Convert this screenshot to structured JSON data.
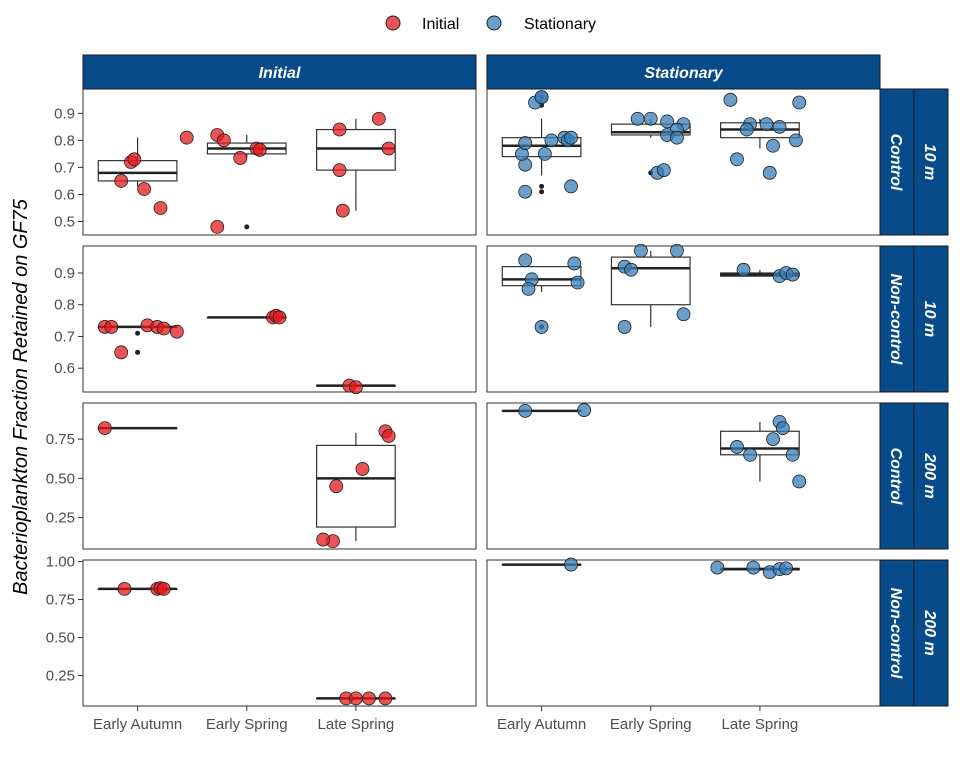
{
  "chart_data": {
    "type": "box-jitter",
    "ylabel": "Bacterioplankton Fraction Retained on GF75",
    "xlabel": "",
    "categories": [
      "Early Autumn",
      "Early Spring",
      "Late Spring"
    ],
    "legend": {
      "placement": "top",
      "entries": [
        {
          "name": "Initial",
          "color": "#E41A1C"
        },
        {
          "name": "Stationary",
          "color": "#377EB8"
        }
      ]
    },
    "strip_color": "#084B8A",
    "columns": [
      "Initial",
      "Stationary"
    ],
    "rows": [
      {
        "treatment": "Control",
        "depth": "10 m",
        "ylim": [
          0.45,
          0.99
        ],
        "yticks": [
          0.6,
          0.7,
          0.8,
          0.9,
          0.5
        ],
        "ytick_labels": [
          "0.6",
          "0.7",
          "0.8",
          "0.9",
          "0.5"
        ]
      },
      {
        "treatment": "Non-control",
        "depth": "10 m",
        "ylim": [
          0.525,
          0.985
        ],
        "yticks": [
          0.6,
          0.7,
          0.8,
          0.9
        ],
        "ytick_labels": [
          "0.6",
          "0.7",
          "0.8",
          "0.9"
        ]
      },
      {
        "treatment": "Control",
        "depth": "200 m",
        "ylim": [
          0.05,
          0.98
        ],
        "yticks": [
          0.25,
          0.5,
          0.75
        ],
        "ytick_labels": [
          "0.25",
          "0.50",
          "0.75"
        ]
      },
      {
        "treatment": "Non-control",
        "depth": "200 m",
        "ylim": [
          0.05,
          1.01
        ],
        "yticks": [
          0.25,
          0.5,
          0.75,
          1.0
        ],
        "ytick_labels": [
          "0.25",
          "0.50",
          "0.75",
          "1.00"
        ]
      }
    ],
    "panels": [
      {
        "row": 0,
        "col": 0,
        "groups": [
          {
            "cat": 0,
            "box": [
              0.63,
              0.65,
              0.68,
              0.725,
              0.81
            ],
            "outliers": [],
            "points": [
              [
                -0.05,
                0.65
              ],
              [
                -0.02,
                0.72
              ],
              [
                -0.01,
                0.73
              ],
              [
                0.02,
                0.62
              ],
              [
                0.07,
                0.55
              ],
              [
                0.15,
                0.81
              ]
            ]
          },
          {
            "cat": 1,
            "box": [
              0.735,
              0.75,
              0.77,
              0.79,
              0.82
            ],
            "outliers": [
              0.48
            ],
            "points": [
              [
                -0.09,
                0.48
              ],
              [
                -0.09,
                0.82
              ],
              [
                -0.07,
                0.8
              ],
              [
                -0.02,
                0.735
              ],
              [
                0.03,
                0.77
              ],
              [
                0.04,
                0.765
              ]
            ]
          },
          {
            "cat": 2,
            "box": [
              0.54,
              0.69,
              0.77,
              0.84,
              0.88
            ],
            "outliers": [],
            "points": [
              [
                -0.04,
                0.54
              ],
              [
                -0.05,
                0.69
              ],
              [
                -0.05,
                0.84
              ],
              [
                0.07,
                0.88
              ],
              [
                0.1,
                0.77
              ]
            ]
          }
        ]
      },
      {
        "row": 0,
        "col": 1,
        "groups": [
          {
            "cat": 0,
            "box": [
              0.67,
              0.74,
              0.78,
              0.81,
              0.88
            ],
            "outliers": [
              0.96,
              0.93,
              0.61,
              0.63
            ],
            "points": [
              [
                -0.05,
                0.61
              ],
              [
                0.09,
                0.63
              ],
              [
                -0.05,
                0.71
              ],
              [
                -0.06,
                0.75
              ],
              [
                0.01,
                0.75
              ],
              [
                -0.05,
                0.79
              ],
              [
                0.03,
                0.8
              ],
              [
                0.07,
                0.81
              ],
              [
                0.08,
                0.8
              ],
              [
                0.09,
                0.81
              ],
              [
                -0.02,
                0.94
              ],
              [
                0.0,
                0.96
              ],
              [
                0.0,
                0.96
              ]
            ]
          },
          {
            "cat": 1,
            "box": [
              0.81,
              0.82,
              0.83,
              0.86,
              0.88
            ],
            "outliers": [
              0.68
            ],
            "points": [
              [
                -0.04,
                0.88
              ],
              [
                0.0,
                0.88
              ],
              [
                0.05,
                0.87
              ],
              [
                0.1,
                0.86
              ],
              [
                0.08,
                0.84
              ],
              [
                0.05,
                0.82
              ],
              [
                0.08,
                0.81
              ],
              [
                0.02,
                0.68
              ],
              [
                0.04,
                0.69
              ]
            ]
          },
          {
            "cat": 2,
            "box": [
              0.77,
              0.81,
              0.84,
              0.865,
              0.88
            ],
            "outliers": [],
            "points": [
              [
                -0.09,
                0.95
              ],
              [
                0.12,
                0.94
              ],
              [
                -0.03,
                0.86
              ],
              [
                0.02,
                0.86
              ],
              [
                -0.04,
                0.84
              ],
              [
                0.06,
                0.85
              ],
              [
                0.04,
                0.78
              ],
              [
                0.11,
                0.8
              ],
              [
                -0.07,
                0.73
              ],
              [
                0.03,
                0.68
              ]
            ]
          }
        ]
      },
      {
        "row": 1,
        "col": 0,
        "groups": [
          {
            "cat": 0,
            "box": [
              0.73,
              0.73,
              0.73,
              0.73,
              0.73
            ],
            "outliers": [
              0.71,
              0.65
            ],
            "points": [
              [
                -0.1,
                0.73
              ],
              [
                -0.08,
                0.73
              ],
              [
                0.03,
                0.735
              ],
              [
                0.06,
                0.73
              ],
              [
                0.08,
                0.725
              ],
              [
                0.12,
                0.715
              ],
              [
                -0.05,
                0.65
              ]
            ]
          },
          {
            "cat": 1,
            "box": [
              0.76,
              0.76,
              0.76,
              0.76,
              0.76
            ],
            "outliers": [],
            "points": [
              [
                0.08,
                0.76
              ],
              [
                0.09,
                0.765
              ],
              [
                0.1,
                0.76
              ]
            ]
          },
          {
            "cat": 2,
            "box": [
              0.545,
              0.545,
              0.545,
              0.545,
              0.545
            ],
            "outliers": [],
            "points": [
              [
                -0.02,
                0.545
              ],
              [
                0.0,
                0.54
              ]
            ]
          }
        ]
      },
      {
        "row": 1,
        "col": 1,
        "groups": [
          {
            "cat": 0,
            "box": [
              0.84,
              0.86,
              0.88,
              0.92,
              0.92
            ],
            "outliers": [
              0.73
            ],
            "points": [
              [
                -0.05,
                0.94
              ],
              [
                -0.03,
                0.88
              ],
              [
                0.1,
                0.93
              ],
              [
                0.11,
                0.87
              ],
              [
                -0.04,
                0.85
              ],
              [
                0.0,
                0.73
              ]
            ]
          },
          {
            "cat": 1,
            "box": [
              0.73,
              0.8,
              0.915,
              0.95,
              0.97
            ],
            "outliers": [],
            "points": [
              [
                -0.08,
                0.92
              ],
              [
                -0.06,
                0.91
              ],
              [
                -0.03,
                0.97
              ],
              [
                0.08,
                0.97
              ],
              [
                0.1,
                0.77
              ],
              [
                -0.08,
                0.73
              ]
            ]
          },
          {
            "cat": 2,
            "box": [
              0.89,
              0.89,
              0.895,
              0.9,
              0.91
            ],
            "outliers": [],
            "points": [
              [
                -0.05,
                0.91
              ],
              [
                0.06,
                0.89
              ],
              [
                0.08,
                0.9
              ],
              [
                0.1,
                0.895
              ]
            ]
          }
        ]
      },
      {
        "row": 2,
        "col": 0,
        "groups": [
          {
            "cat": 0,
            "box": [
              0.82,
              0.82,
              0.82,
              0.82,
              0.82
            ],
            "outliers": [],
            "points": [
              [
                -0.1,
                0.82
              ]
            ]
          },
          {
            "cat": 2,
            "box": [
              0.1,
              0.19,
              0.5,
              0.71,
              0.79
            ],
            "outliers": [],
            "points": [
              [
                -0.07,
                0.1
              ],
              [
                -0.1,
                0.11
              ],
              [
                -0.06,
                0.45
              ],
              [
                0.02,
                0.56
              ],
              [
                0.09,
                0.8
              ],
              [
                0.1,
                0.77
              ]
            ]
          }
        ]
      },
      {
        "row": 2,
        "col": 1,
        "groups": [
          {
            "cat": 0,
            "box": [
              0.93,
              0.93,
              0.93,
              0.93,
              0.93
            ],
            "outliers": [],
            "points": [
              [
                -0.05,
                0.93
              ],
              [
                0.13,
                0.935
              ]
            ]
          },
          {
            "cat": 2,
            "box": [
              0.48,
              0.65,
              0.69,
              0.8,
              0.86
            ],
            "outliers": [],
            "points": [
              [
                0.06,
                0.86
              ],
              [
                0.07,
                0.82
              ],
              [
                0.04,
                0.75
              ],
              [
                -0.07,
                0.7
              ],
              [
                -0.03,
                0.65
              ],
              [
                0.1,
                0.65
              ],
              [
                0.12,
                0.48
              ]
            ]
          }
        ]
      },
      {
        "row": 3,
        "col": 0,
        "groups": [
          {
            "cat": 0,
            "box": [
              0.82,
              0.82,
              0.82,
              0.82,
              0.82
            ],
            "outliers": [],
            "points": [
              [
                -0.04,
                0.82
              ],
              [
                0.06,
                0.82
              ],
              [
                0.07,
                0.825
              ],
              [
                0.08,
                0.82
              ]
            ]
          },
          {
            "cat": 2,
            "box": [
              0.1,
              0.1,
              0.1,
              0.1,
              0.1
            ],
            "outliers": [],
            "points": [
              [
                -0.03,
                0.1
              ],
              [
                0.0,
                0.1
              ],
              [
                0.04,
                0.1
              ],
              [
                0.09,
                0.1
              ]
            ]
          }
        ]
      },
      {
        "row": 3,
        "col": 1,
        "groups": [
          {
            "cat": 0,
            "box": [
              0.98,
              0.98,
              0.98,
              0.98,
              0.98
            ],
            "outliers": [],
            "points": [
              [
                0.09,
                0.98
              ]
            ]
          },
          {
            "cat": 2,
            "box": [
              0.94,
              0.945,
              0.95,
              0.955,
              0.96
            ],
            "outliers": [],
            "points": [
              [
                -0.13,
                0.96
              ],
              [
                -0.02,
                0.96
              ],
              [
                0.03,
                0.93
              ],
              [
                0.06,
                0.95
              ],
              [
                0.08,
                0.955
              ]
            ]
          }
        ]
      }
    ]
  }
}
